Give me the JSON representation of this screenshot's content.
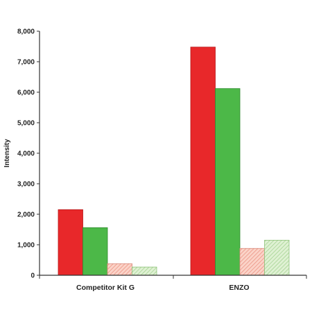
{
  "chart_data": {
    "type": "bar",
    "title": "",
    "xlabel": "",
    "ylabel": "Intensity",
    "ylim": [
      0,
      8000
    ],
    "yticks": [
      0,
      1000,
      2000,
      3000,
      4000,
      5000,
      6000,
      7000,
      8000
    ],
    "ytick_labels": [
      "0",
      "1,000",
      "2,000",
      "3,000",
      "4,000",
      "5,000",
      "6,000",
      "7,000",
      "8,000"
    ],
    "grid": false,
    "legend": "none",
    "categories": [
      "Competitor Kit G",
      "ENZO"
    ],
    "series": [
      {
        "values": [
          2150,
          7480
        ],
        "color": "#e8282a",
        "pattern": "solid"
      },
      {
        "values": [
          1560,
          6120
        ],
        "color": "#4cb848",
        "pattern": "solid"
      },
      {
        "values": [
          380,
          880
        ],
        "color": "#f4a99a",
        "pattern": "hatched"
      },
      {
        "values": [
          270,
          1150
        ],
        "color": "#b9e0a8",
        "pattern": "hatched"
      }
    ]
  }
}
